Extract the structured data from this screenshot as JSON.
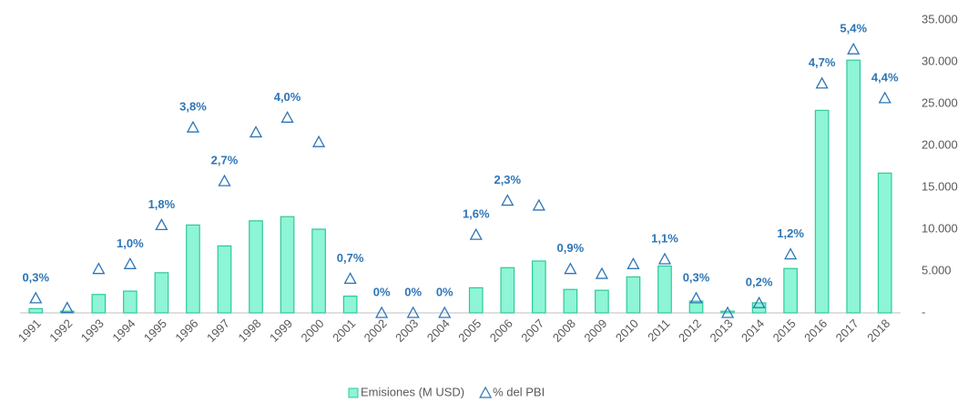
{
  "chart_data": {
    "type": "bar-line",
    "categories": [
      "1991",
      "1992",
      "1993",
      "1994",
      "1995",
      "1996",
      "1997",
      "1998",
      "1999",
      "2000",
      "2001",
      "2002",
      "2003",
      "2004",
      "2005",
      "2006",
      "2007",
      "2008",
      "2009",
      "2010",
      "2011",
      "2012",
      "2013",
      "2014",
      "2015",
      "2016",
      "2017",
      "2018"
    ],
    "series": [
      {
        "name": "Emisiones (M USD)",
        "type": "bar",
        "color": "#8ef5d6",
        "edge_color": "#2ec99a",
        "values": [
          500,
          200,
          2200,
          2600,
          4800,
          10500,
          8000,
          11000,
          11500,
          10000,
          2000,
          0,
          0,
          0,
          3000,
          5400,
          6200,
          2800,
          2700,
          4300,
          5600,
          1400,
          200,
          1200,
          5300,
          24200,
          30200,
          16700
        ]
      },
      {
        "name": "% del PBI",
        "type": "marker",
        "axis": "y2",
        "color": "#2e75b6",
        "values": [
          0.3,
          0.1,
          0.9,
          1.0,
          1.8,
          3.8,
          2.7,
          3.7,
          4.0,
          3.5,
          0.7,
          0,
          0,
          0,
          1.6,
          2.3,
          2.2,
          0.9,
          0.8,
          1.0,
          1.1,
          0.3,
          0,
          0.2,
          1.2,
          4.7,
          5.4,
          4.4
        ],
        "value_labels": [
          "0,3%",
          null,
          null,
          "1,0%",
          "1,8%",
          "3,8%",
          "2,7%",
          null,
          "4,0%",
          null,
          "0,7%",
          "0%",
          "0%",
          "0%",
          "1,6%",
          "2,3%",
          null,
          "0,9%",
          null,
          null,
          "1,1%",
          "0,3%",
          null,
          "0,2%",
          "1,2%",
          "4,7%",
          "5,4%",
          "4,4%"
        ]
      }
    ],
    "ylim": [
      0,
      35000
    ],
    "yticks": [
      {
        "value": 0,
        "label": "-"
      },
      {
        "value": 5000,
        "label": "5.000"
      },
      {
        "value": 10000,
        "label": "10.000"
      },
      {
        "value": 15000,
        "label": "15.000"
      },
      {
        "value": 20000,
        "label": "20.000"
      },
      {
        "value": 25000,
        "label": "25.000"
      },
      {
        "value": 30000,
        "label": "30.000"
      },
      {
        "value": 35000,
        "label": "35.000"
      }
    ],
    "y2lim": [
      0,
      6
    ],
    "grid": false,
    "legend": "bottom"
  }
}
